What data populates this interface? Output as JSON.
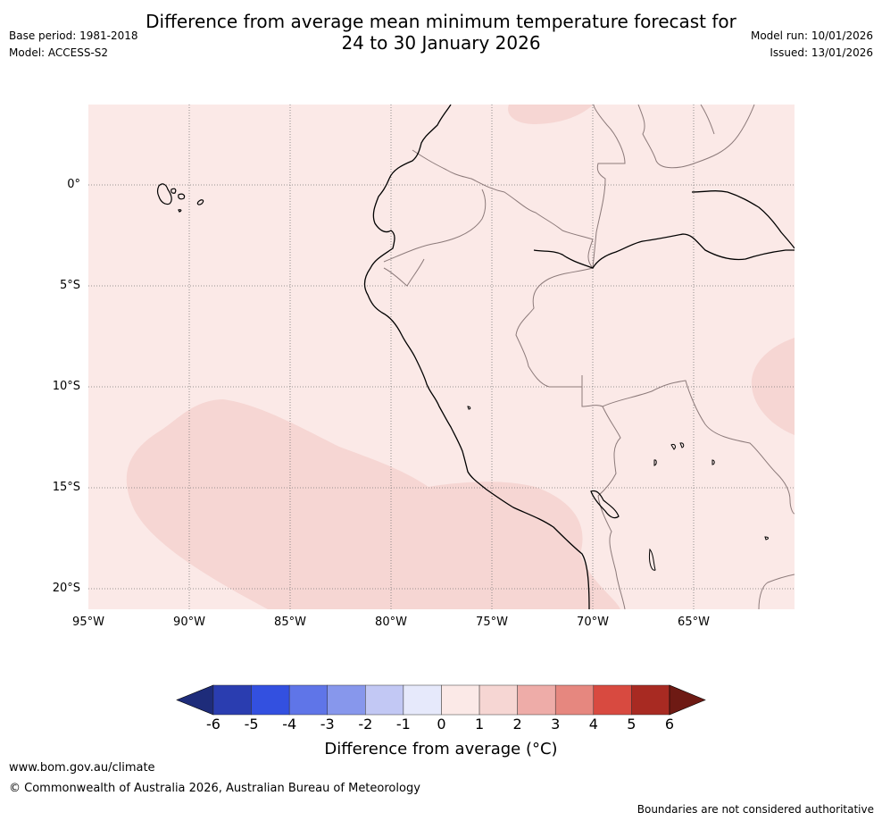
{
  "title": {
    "line1": "Difference from average mean minimum temperature forecast for",
    "line2": "24 to 30 January 2026"
  },
  "meta": {
    "base_period": "Base period: 1981-2018",
    "model": "Model: ACCESS-S2",
    "model_run": "Model run: 10/01/2026",
    "issued": "Issued: 13/01/2026"
  },
  "map": {
    "latitude_labels": [
      "0°",
      "5°S",
      "10°S",
      "15°S",
      "20°S"
    ],
    "longitude_labels": [
      "95°W",
      "90°W",
      "85°W",
      "80°W",
      "75°W",
      "70°W",
      "65°W"
    ],
    "background_anomaly_color": "#fbe9e7",
    "warm_anomaly_color": "#f6d6d3",
    "coastline_color": "#000000",
    "border_color": "#8c7a7a"
  },
  "colorbar": {
    "ticks": [
      "-6",
      "-5",
      "-4",
      "-3",
      "-2",
      "-1",
      "0",
      "1",
      "2",
      "3",
      "4",
      "5",
      "6"
    ],
    "colors": [
      "#1e2c7a",
      "#2a3db0",
      "#3350e0",
      "#5f75e8",
      "#8797ec",
      "#c2c8f4",
      "#e6e9fb",
      "#fbe9e7",
      "#f6d6d3",
      "#eeaca8",
      "#e6877f",
      "#d84a40",
      "#a82a22",
      "#6e1a14"
    ],
    "label": "Difference from average (°C)"
  },
  "footer": {
    "url": "www.bom.gov.au/climate",
    "copyright": "© Commonwealth of Australia 2026, Australian Bureau of Meteorology",
    "disclaimer": "Boundaries are not considered authoritative"
  }
}
